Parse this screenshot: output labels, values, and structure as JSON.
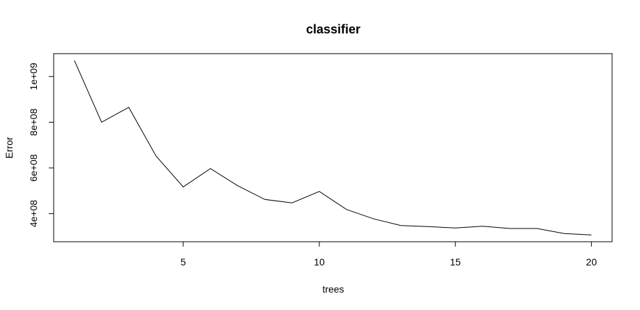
{
  "chart_data": {
    "type": "line",
    "title": "classifier",
    "xlabel": "trees",
    "ylabel": "Error",
    "x": [
      1,
      2,
      3,
      4,
      5,
      6,
      7,
      8,
      9,
      10,
      11,
      12,
      13,
      14,
      15,
      16,
      17,
      18,
      19,
      20
    ],
    "series": [
      {
        "values": [
          1070000000,
          800000000,
          865000000,
          652000000,
          517000000,
          597000000,
          522000000,
          462000000,
          447000000,
          497000000,
          418000000,
          377000000,
          348000000,
          343000000,
          337000000,
          345000000,
          335000000,
          335000000,
          313000000,
          307000000
        ]
      }
    ],
    "xlim": [
      0.24,
      20.76
    ],
    "ylim": [
      277000000,
      1100000000
    ],
    "xticks": [
      5,
      10,
      15,
      20
    ],
    "xtick_labels": [
      "5",
      "10",
      "15",
      "20"
    ],
    "yticks": [
      400000000,
      600000000,
      800000000,
      1000000000
    ],
    "ytick_labels": [
      "4e+08",
      "6e+08",
      "8e+08",
      "1e+09"
    ],
    "line_color": "#000000",
    "grid": false,
    "legend": "none"
  }
}
